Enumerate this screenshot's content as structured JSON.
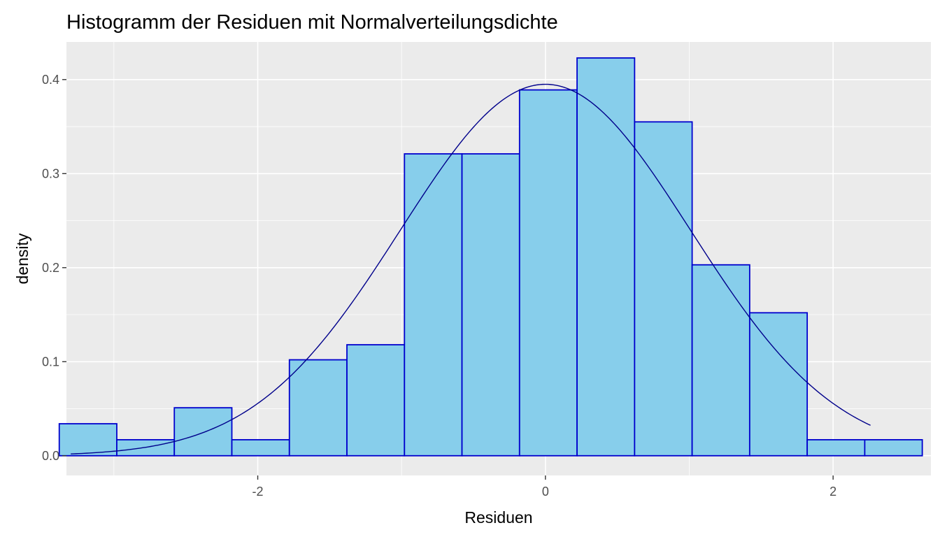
{
  "chart_data": {
    "type": "bar",
    "subtype": "histogram-with-density-curve",
    "title": "Histogramm der Residuen mit Normalverteilungsdichte",
    "xlabel": "Residuen",
    "ylabel": "density",
    "xlim": [
      -3.33,
      2.68
    ],
    "ylim": [
      -0.021,
      0.44
    ],
    "x_ticks": [
      -2,
      0,
      2
    ],
    "x_tick_labels": [
      "-2",
      "0",
      "2"
    ],
    "x_minor_ticks": [
      -3,
      -1,
      1
    ],
    "y_ticks": [
      0.0,
      0.1,
      0.2,
      0.3,
      0.4
    ],
    "y_tick_labels": [
      "0.0",
      "0.1",
      "0.2",
      "0.3",
      "0.4"
    ],
    "y_minor_ticks": [
      0.05,
      0.15,
      0.25,
      0.35
    ],
    "grid": true,
    "bins": [
      {
        "x0": -3.38,
        "x1": -2.98,
        "density": 0.034
      },
      {
        "x0": -2.98,
        "x1": -2.58,
        "density": 0.017
      },
      {
        "x0": -2.58,
        "x1": -2.18,
        "density": 0.051
      },
      {
        "x0": -2.18,
        "x1": -1.78,
        "density": 0.017
      },
      {
        "x0": -1.78,
        "x1": -1.38,
        "density": 0.102
      },
      {
        "x0": -1.38,
        "x1": -0.98,
        "density": 0.118
      },
      {
        "x0": -0.98,
        "x1": -0.58,
        "density": 0.321
      },
      {
        "x0": -0.58,
        "x1": -0.18,
        "density": 0.321
      },
      {
        "x0": -0.18,
        "x1": 0.22,
        "density": 0.389
      },
      {
        "x0": 0.22,
        "x1": 0.62,
        "density": 0.423
      },
      {
        "x0": 0.62,
        "x1": 1.02,
        "density": 0.355
      },
      {
        "x0": 1.02,
        "x1": 1.42,
        "density": 0.203
      },
      {
        "x0": 1.42,
        "x1": 1.82,
        "density": 0.152
      },
      {
        "x0": 1.82,
        "x1": 2.22,
        "density": 0.017
      },
      {
        "x0": 2.22,
        "x1": 2.62,
        "density": 0.017
      }
    ],
    "density_curve": {
      "distribution": "normal",
      "mean": 0.0,
      "sd": 1.01,
      "x_range": [
        -3.3,
        2.26
      ]
    },
    "colors": {
      "background": "#EBEBEB",
      "grid": "#FFFFFF",
      "bar_fill": "#87CEEB",
      "bar_stroke": "#0000CD",
      "curve": "#00008B",
      "tick_label": "#4D4D4D",
      "tick_mark": "#333333"
    }
  }
}
